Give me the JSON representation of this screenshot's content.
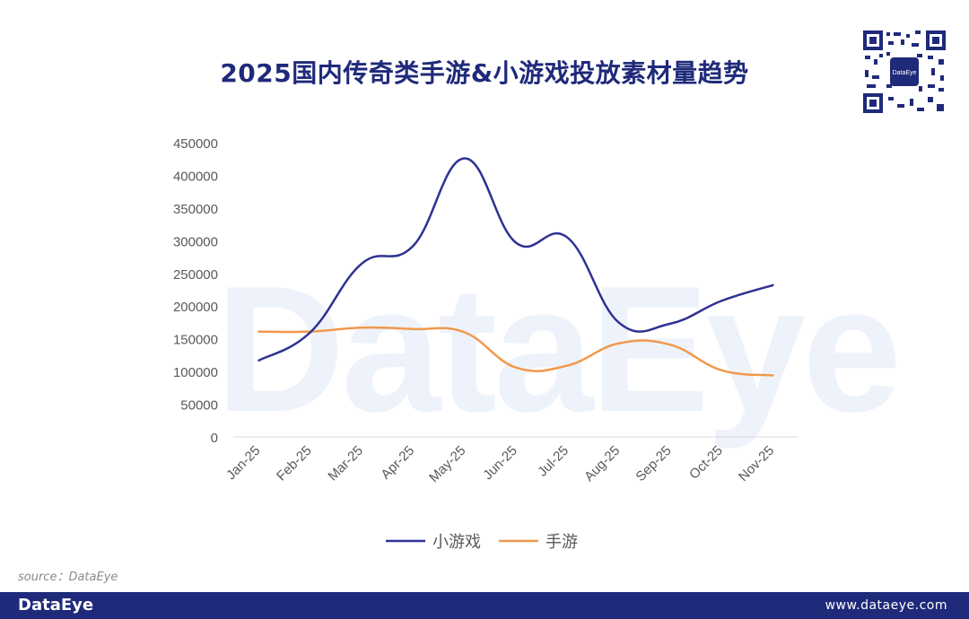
{
  "title": "2025国内传奇类手游&小游戏投放素材量趋势",
  "qr_label": "DataEye",
  "watermark": "DataEye",
  "source": "source：DataEye",
  "footer": {
    "logo": "DataEye",
    "url": "www.dataeye.com"
  },
  "colors": {
    "brand": "#1f2a7a",
    "mini_game": "#2e3192",
    "mobile_game": "#f0994c"
  },
  "chart_data": {
    "type": "line",
    "title": "",
    "xlabel": "",
    "ylabel": "",
    "categories": [
      "Jan-25",
      "Feb-25",
      "Mar-25",
      "Apr-25",
      "May-25",
      "Jun-25",
      "Jul-25",
      "Aug-25",
      "Sep-25",
      "Oct-25",
      "Nov-25"
    ],
    "ylim": [
      0,
      450000
    ],
    "yticks": [
      "0",
      "50000",
      "100000",
      "150000",
      "200000",
      "250000",
      "300000",
      "350000",
      "400000",
      "450000"
    ],
    "grid": false,
    "legend": "bottom",
    "series": [
      {
        "name": "小游戏",
        "color": "#2e3192",
        "values": [
          117000,
          160000,
          265000,
          292000,
          426000,
          297000,
          305000,
          175000,
          173000,
          208000,
          232000
        ]
      },
      {
        "name": "手游",
        "color": "#f0994c",
        "values": [
          161000,
          161000,
          167000,
          165000,
          160000,
          106000,
          109000,
          143000,
          141000,
          102000,
          94000
        ]
      }
    ]
  }
}
